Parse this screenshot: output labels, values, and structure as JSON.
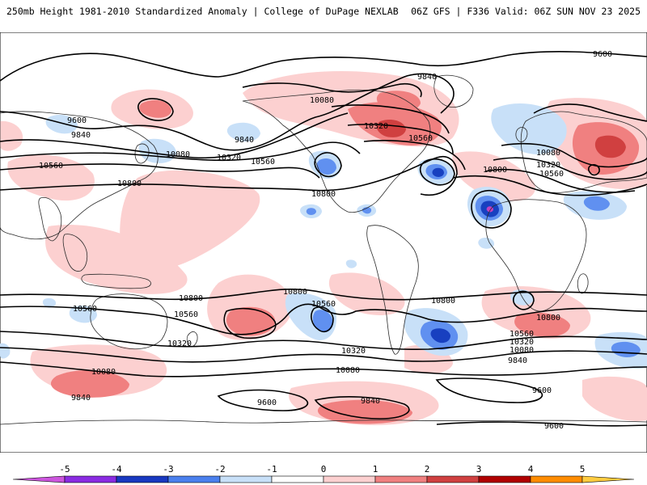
{
  "header": {
    "left_title": "250mb Height 1981-2010 Standardized Anomaly | College of DuPage NEXLAB",
    "right_title": "06Z GFS | F336 Valid: 06Z SUN NOV 23 2025"
  },
  "colors": {
    "background": "#ffffff",
    "coast": "#2a2a2a",
    "contour": "#000000",
    "anomaly_pos_1": "#fcd0d0",
    "anomaly_pos_2": "#f08080",
    "anomaly_pos_3": "#d04040",
    "anomaly_neg_1": "#c8e0f8",
    "anomaly_neg_2": "#6090f0",
    "anomaly_neg_3": "#1840c0",
    "anomaly_neg_5": "#c040c0"
  },
  "contour_labels": [
    {
      "id": "lbl-9600-npac",
      "text": "9600"
    },
    {
      "id": "lbl-9840-npac",
      "text": "9840"
    },
    {
      "id": "lbl-10080-npac",
      "text": "10080"
    },
    {
      "id": "lbl-10320-npac",
      "text": "10320"
    },
    {
      "id": "lbl-10560-npac",
      "text": "10560"
    },
    {
      "id": "lbl-10560-asia",
      "text": "10560"
    },
    {
      "id": "lbl-10800-npac",
      "text": "10800"
    },
    {
      "id": "lbl-9840-usa",
      "text": "9840"
    },
    {
      "id": "lbl-10080-can",
      "text": "10080"
    },
    {
      "id": "lbl-10320-can",
      "text": "10320"
    },
    {
      "id": "lbl-10560-can",
      "text": "10560"
    },
    {
      "id": "lbl-9840-arctic",
      "text": "9840"
    },
    {
      "id": "lbl-9600-arctic",
      "text": "9600"
    },
    {
      "id": "lbl-10800-usa",
      "text": "10800"
    },
    {
      "id": "lbl-10800-atl",
      "text": "10800"
    },
    {
      "id": "lbl-10080-eur",
      "text": "10080"
    },
    {
      "id": "lbl-10320-eur",
      "text": "10320"
    },
    {
      "id": "lbl-10560-eur",
      "text": "10560"
    },
    {
      "id": "lbl-10800-spac",
      "text": "10800"
    },
    {
      "id": "lbl-10560-spac",
      "text": "10560"
    },
    {
      "id": "lbl-10800-sio",
      "text": "10800"
    },
    {
      "id": "lbl-10560-sio",
      "text": "10560"
    },
    {
      "id": "lbl-10560-aus",
      "text": "10560"
    },
    {
      "id": "lbl-10320-aus",
      "text": "10320"
    },
    {
      "id": "lbl-10800-sam",
      "text": "10800"
    },
    {
      "id": "lbl-10800-safr",
      "text": "10800"
    },
    {
      "id": "lbl-10560-satl",
      "text": "10560"
    },
    {
      "id": "lbl-10320-satl",
      "text": "10320"
    },
    {
      "id": "lbl-10080-satl",
      "text": "10080"
    },
    {
      "id": "lbl-9840-satl",
      "text": "9840"
    },
    {
      "id": "lbl-10320-spac2",
      "text": "10320"
    },
    {
      "id": "lbl-10080-spac2",
      "text": "10080"
    },
    {
      "id": "lbl-10080-sio2",
      "text": "10080"
    },
    {
      "id": "lbl-9840-sio2",
      "text": "9840"
    },
    {
      "id": "lbl-9600-spac2",
      "text": "9600"
    },
    {
      "id": "lbl-9840-spac3",
      "text": "9840"
    },
    {
      "id": "lbl-9600-satl2",
      "text": "9600"
    },
    {
      "id": "lbl-9600-south",
      "text": "9600"
    }
  ],
  "colorbar": {
    "ticks": [
      "-5",
      "-4",
      "-3",
      "-2",
      "-1",
      "0",
      "1",
      "2",
      "3",
      "4",
      "5"
    ],
    "segment_colors": [
      "#cc55dd",
      "#8a2be2",
      "#1838c0",
      "#4a80ee",
      "#c8e0f8",
      "#ffffff",
      "#fcd0d0",
      "#f08080",
      "#d04040",
      "#b00000",
      "#ff8c00",
      "#ffcc40"
    ]
  }
}
